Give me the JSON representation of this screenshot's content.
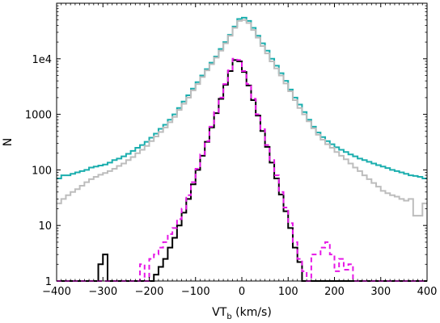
{
  "chart_data": {
    "type": "line",
    "title": "",
    "xlabel": "VT",
    "xlabel_sub": "b",
    "xlabel_unit": " (km/s)",
    "ylabel": "N",
    "xlim": [
      -400,
      400
    ],
    "ylim": [
      1,
      100000
    ],
    "yscale": "log",
    "grid": false,
    "legend": "none",
    "x_ticks": [
      {
        "v": -400,
        "label": "−400"
      },
      {
        "v": -300,
        "label": "−300"
      },
      {
        "v": -200,
        "label": "−200"
      },
      {
        "v": -100,
        "label": "−100"
      },
      {
        "v": 0,
        "label": "0"
      },
      {
        "v": 100,
        "label": "100"
      },
      {
        "v": 200,
        "label": "200"
      },
      {
        "v": 300,
        "label": "300"
      },
      {
        "v": 400,
        "label": "400"
      }
    ],
    "y_ticks": [
      {
        "v": 1,
        "label": "1"
      },
      {
        "v": 10,
        "label": "10"
      },
      {
        "v": 100,
        "label": "100"
      },
      {
        "v": 1000,
        "label": "1000"
      },
      {
        "v": 10000,
        "label": "1e4"
      }
    ],
    "bin_edges": [
      -400,
      -390,
      -380,
      -370,
      -360,
      -350,
      -340,
      -330,
      -320,
      -310,
      -300,
      -290,
      -280,
      -270,
      -260,
      -250,
      -240,
      -230,
      -220,
      -210,
      -200,
      -190,
      -180,
      -170,
      -160,
      -150,
      -140,
      -130,
      -120,
      -110,
      -100,
      -90,
      -80,
      -70,
      -60,
      -50,
      -40,
      -30,
      -20,
      -10,
      0,
      10,
      20,
      30,
      40,
      50,
      60,
      70,
      80,
      90,
      100,
      110,
      120,
      130,
      140,
      150,
      160,
      170,
      180,
      190,
      200,
      210,
      220,
      230,
      240,
      250,
      260,
      270,
      280,
      290,
      300,
      310,
      320,
      330,
      340,
      350,
      360,
      370,
      380,
      390,
      400
    ],
    "series": [
      {
        "color": "#1aaeae",
        "style": "solid",
        "values": [
          70,
          80,
          80,
          85,
          90,
          95,
          100,
          110,
          115,
          120,
          125,
          135,
          150,
          160,
          175,
          195,
          220,
          250,
          280,
          320,
          380,
          450,
          550,
          650,
          800,
          1000,
          1300,
          1700,
          2200,
          2900,
          3800,
          5000,
          6500,
          8500,
          11000,
          15000,
          20000,
          27000,
          38000,
          52000,
          55000,
          48000,
          36000,
          26000,
          19000,
          14000,
          10000,
          7500,
          5500,
          4000,
          2800,
          2000,
          1500,
          1100,
          800,
          600,
          470,
          390,
          330,
          290,
          255,
          230,
          210,
          190,
          175,
          160,
          150,
          140,
          130,
          122,
          115,
          108,
          100,
          95,
          90,
          85,
          80,
          78,
          75,
          70
        ]
      },
      {
        "color": "#bdbdbd",
        "style": "solid",
        "values": [
          25,
          30,
          35,
          40,
          45,
          52,
          60,
          68,
          75,
          82,
          88,
          95,
          105,
          118,
          130,
          150,
          170,
          200,
          230,
          270,
          330,
          400,
          480,
          580,
          720,
          900,
          1200,
          1550,
          2000,
          2700,
          3500,
          4700,
          6200,
          8000,
          10500,
          14000,
          19000,
          26000,
          36000,
          48000,
          50000,
          44000,
          33000,
          24000,
          17000,
          12500,
          9000,
          6700,
          5000,
          3600,
          2600,
          1800,
          1300,
          1000,
          750,
          560,
          430,
          350,
          290,
          250,
          210,
          180,
          155,
          130,
          110,
          95,
          80,
          68,
          58,
          50,
          42,
          38,
          35,
          33,
          30,
          28,
          30,
          15,
          15,
          25
        ]
      },
      {
        "color": "#000000",
        "style": "solid",
        "values": [
          1,
          1,
          1,
          1,
          1,
          1,
          1,
          1,
          1,
          2,
          3,
          1,
          1,
          1,
          1,
          1,
          1,
          1,
          1,
          1,
          1,
          1.3,
          1.8,
          2.5,
          4,
          6,
          10,
          17,
          30,
          55,
          100,
          180,
          320,
          580,
          1050,
          1900,
          3400,
          6000,
          9500,
          9000,
          5800,
          3300,
          1800,
          950,
          500,
          260,
          135,
          70,
          36,
          18,
          9,
          4,
          2.2,
          1,
          1,
          1,
          1,
          1,
          1,
          1,
          1,
          1,
          1,
          1,
          1,
          1,
          1,
          1,
          1,
          1,
          1,
          1,
          1,
          1,
          1,
          1,
          1,
          1,
          1,
          1
        ]
      },
      {
        "color": "#e617e6",
        "style": "dashed",
        "values": [
          1,
          1,
          1,
          1,
          1,
          1,
          1,
          1,
          1,
          1,
          1,
          1,
          1,
          1,
          1,
          1,
          1,
          1,
          2,
          1,
          2.5,
          3,
          4,
          5,
          7,
          9,
          13,
          20,
          35,
          60,
          105,
          190,
          330,
          600,
          1100,
          2000,
          3500,
          6200,
          10000,
          9500,
          6000,
          3500,
          1900,
          1000,
          540,
          280,
          150,
          80,
          40,
          21,
          11,
          5,
          2.5,
          1.5,
          1,
          3,
          3,
          4,
          5,
          3,
          1.5,
          2.5,
          1.6,
          2,
          1,
          1,
          1,
          1,
          1,
          1,
          1,
          1,
          1,
          1,
          1,
          1,
          1,
          1,
          1,
          1
        ]
      }
    ]
  }
}
